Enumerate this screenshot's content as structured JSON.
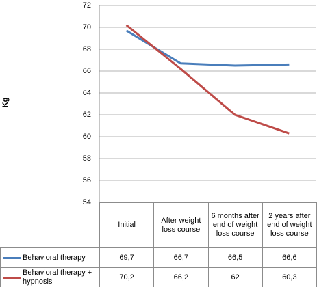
{
  "chart_data": {
    "type": "line",
    "y_label": "Kg",
    "categories": [
      "Initial",
      "After weight loss course",
      "6 months after end of weight loss course",
      "2 years after end of weight loss course"
    ],
    "series": [
      {
        "name": "Behavioral therapy",
        "color": "#4a7ebb",
        "values": [
          69.7,
          66.7,
          66.5,
          66.6
        ],
        "value_labels": [
          "69,7",
          "66,7",
          "66,5",
          "66,6"
        ]
      },
      {
        "name": "Behavioral therapy + hypnosis",
        "color": "#be4b48",
        "values": [
          70.2,
          66.2,
          62,
          60.3
        ],
        "value_labels": [
          "70,2",
          "66,2",
          "62",
          "60,3"
        ]
      }
    ],
    "ylim": [
      54,
      72
    ],
    "yticks": [
      54,
      56,
      58,
      60,
      62,
      64,
      66,
      68,
      70,
      72
    ],
    "grid": true,
    "data_table": true
  }
}
